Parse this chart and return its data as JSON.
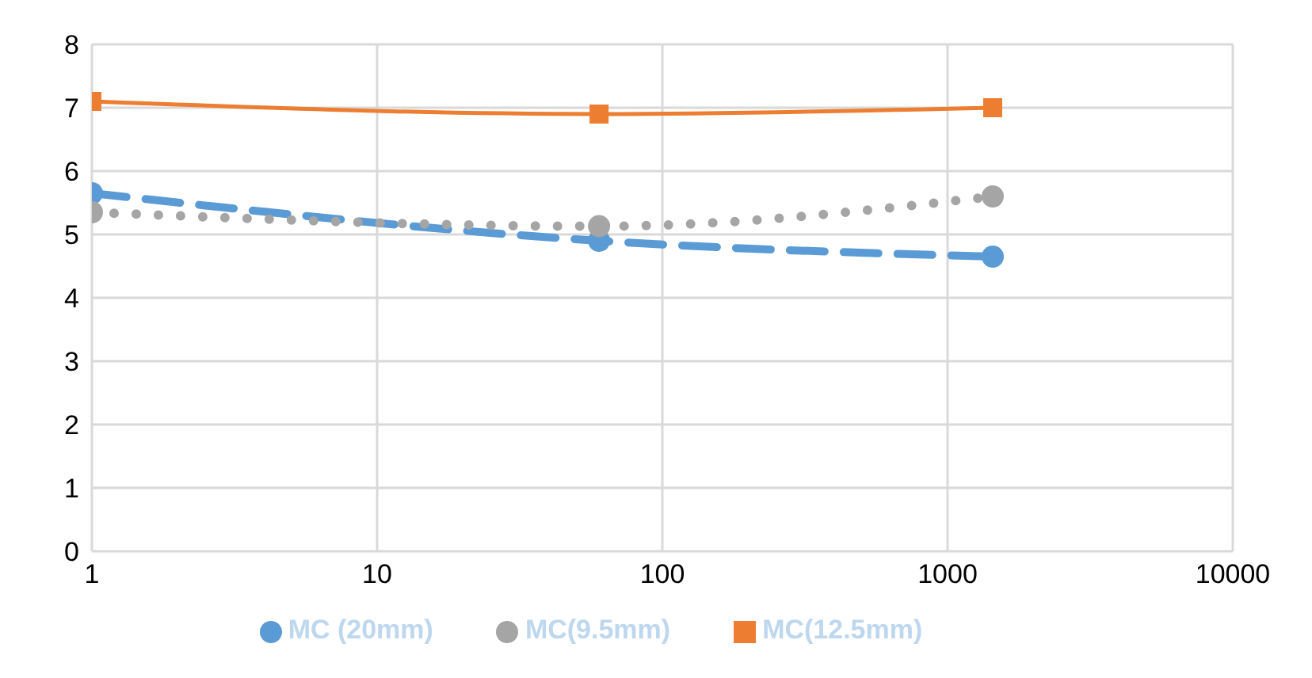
{
  "chart_data": {
    "type": "line",
    "log": "x",
    "xlim": [
      1,
      10000
    ],
    "xticks": [
      1,
      10,
      100,
      1000,
      10000
    ],
    "ylim": [
      0,
      8
    ],
    "yticks": [
      0,
      1,
      2,
      3,
      4,
      5,
      6,
      7,
      8
    ],
    "grid": true,
    "legend": "bottom",
    "series": [
      {
        "name": "MC (20mm)",
        "color": "#5b9bd5",
        "x": [
          1,
          60,
          1440
        ],
        "values": [
          5.65,
          4.9,
          4.65
        ],
        "marker": "circle",
        "line_style": "dashed"
      },
      {
        "name": "MC(9.5mm)",
        "color": "#a5a5a5",
        "x": [
          1,
          60,
          1440
        ],
        "values": [
          5.35,
          5.13,
          5.6
        ],
        "marker": "circle",
        "line_style": "dotted"
      },
      {
        "name": "MC(12.5mm)",
        "color": "#ed7d31",
        "x": [
          1,
          60,
          1440
        ],
        "values": [
          7.1,
          6.9,
          7.0
        ],
        "marker": "square",
        "line_style": "solid"
      }
    ]
  }
}
